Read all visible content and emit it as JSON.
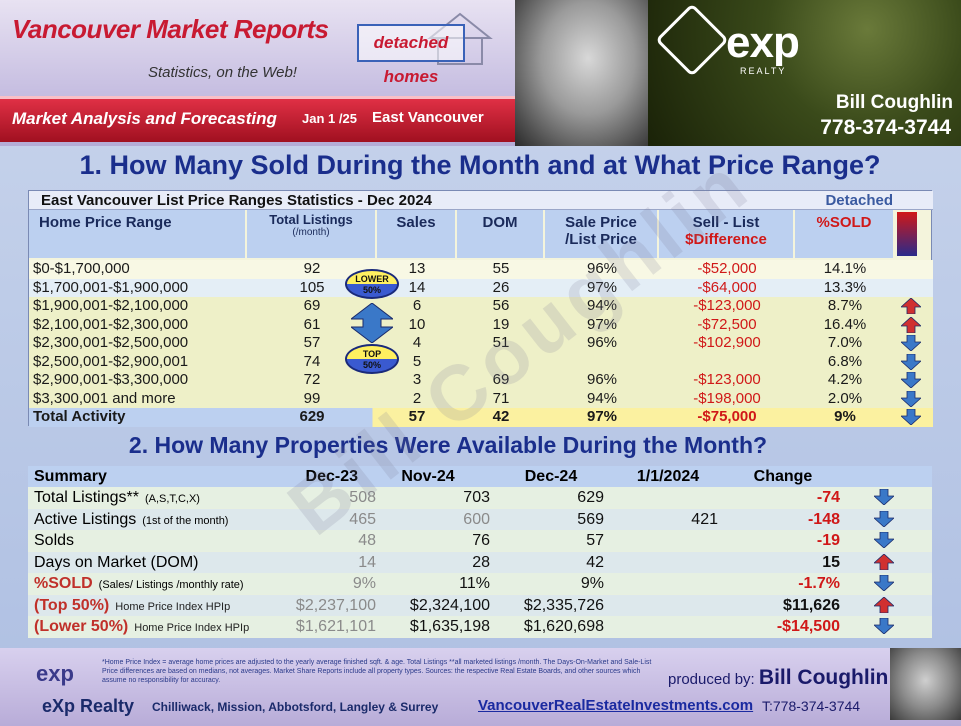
{
  "header": {
    "title": "Vancouver Market Reports",
    "subtitle": "Statistics, on the Web!",
    "badge": "detached homes",
    "bar_left": "Market Analysis and Forecasting",
    "bar_date": "Jan 1 /25",
    "bar_area": "East Vancouver",
    "logo_text": "exp",
    "logo_sub": "REALTY",
    "agent_name": "Bill Coughlin",
    "agent_phone": "778-374-3744"
  },
  "section1": {
    "heading": "1. How Many Sold During the Month and at What Price Range?",
    "table_title": "East Vancouver List Price Ranges Statistics - Dec 2024",
    "table_type": "Detached",
    "headers": {
      "range": "Home Price Range",
      "listings": "Total  Listings",
      "listings_sub": "(/month)",
      "sales": "Sales",
      "dom": "DOM",
      "sp_lp_1": "Sale Price",
      "sp_lp_2": "/List Price",
      "diff_1": "Sell - List",
      "diff_2": "$Difference",
      "sold": "%SOLD"
    },
    "lower_badge": [
      "LOWER",
      "50%"
    ],
    "top_badge": [
      "TOP",
      "50%"
    ],
    "rows": [
      {
        "range": "$0-$1,700,000",
        "listings": "92",
        "sales": "13",
        "dom": "55",
        "ratio": "96%",
        "diff": "-$52,000",
        "sold": "14.1%",
        "arrow": "none"
      },
      {
        "range": "$1,700,001-$1,900,000",
        "listings": "105",
        "sales": "14",
        "dom": "26",
        "ratio": "97%",
        "diff": "-$64,000",
        "sold": "13.3%",
        "arrow": "none"
      },
      {
        "range": "$1,900,001-$2,100,000",
        "listings": "69",
        "sales": "6",
        "dom": "56",
        "ratio": "94%",
        "diff": "-$123,000",
        "sold": "8.7%",
        "arrow": "up"
      },
      {
        "range": "$2,100,001-$2,300,000",
        "listings": "61",
        "sales": "10",
        "dom": "19",
        "ratio": "97%",
        "diff": "-$72,500",
        "sold": "16.4%",
        "arrow": "up"
      },
      {
        "range": "$2,300,001-$2,500,000",
        "listings": "57",
        "sales": "4",
        "dom": "51",
        "ratio": "96%",
        "diff": "-$102,900",
        "sold": "7.0%",
        "arrow": "down"
      },
      {
        "range": "$2,500,001-$2,900,001",
        "listings": "74",
        "sales": "5",
        "dom": "",
        "ratio": "",
        "diff": "",
        "sold": "6.8%",
        "arrow": "down"
      },
      {
        "range": "$2,900,001-$3,300,000",
        "listings": "72",
        "sales": "3",
        "dom": "69",
        "ratio": "96%",
        "diff": "-$123,000",
        "sold": "4.2%",
        "arrow": "down"
      },
      {
        "range": "$3,300,001 and more",
        "listings": "99",
        "sales": "2",
        "dom": "71",
        "ratio": "94%",
        "diff": "-$198,000",
        "sold": "2.0%",
        "arrow": "down"
      }
    ],
    "total": {
      "range": "Total Activity",
      "listings": "629",
      "sales": "57",
      "dom": "42",
      "ratio": "97%",
      "diff": "-$75,000",
      "sold": "9%",
      "arrow": "down"
    }
  },
  "section2": {
    "heading": "2. How Many Properties Were Available During the Month?",
    "headers": {
      "summary": "Summary",
      "c1": "Dec-23",
      "c2": "Nov-24",
      "c3": "Dec-24",
      "c4": "1/1/2024",
      "c5": "Change"
    },
    "rows": [
      {
        "label": "Total Listings**",
        "note": "(A,S,T,C,X)",
        "c1": "508",
        "c2": "703",
        "c3": "629",
        "c4": "",
        "change": "-74",
        "arrow": "down",
        "style": "plain"
      },
      {
        "label": "Active Listings",
        "note": "(1st of the month)",
        "c1": "465",
        "c2": "600",
        "c3": "569",
        "c4": "421",
        "change": "-148",
        "arrow": "down",
        "style": "plain"
      },
      {
        "label": "Solds",
        "note": "",
        "c1": "48",
        "c2": "76",
        "c3": "57",
        "c4": "",
        "change": "-19",
        "arrow": "down",
        "style": "plain"
      },
      {
        "label": "Days on Market (DOM)",
        "note": "",
        "c1": "14",
        "c2": "28",
        "c3": "42",
        "c4": "",
        "change": "15",
        "arrow": "up",
        "style": "plain"
      },
      {
        "label": "%SOLD",
        "note": "(Sales/ Listings /monthly rate)",
        "c1": "9%",
        "c2": "11%",
        "c3": "9%",
        "c4": "",
        "change": "-1.7%",
        "arrow": "down",
        "style": "red"
      },
      {
        "label": "(Top 50%)",
        "note": "Home Price Index HPIp",
        "c1": "$2,237,100",
        "c2": "$2,324,100",
        "c3": "$2,335,726",
        "c4": "",
        "change": "$11,626",
        "arrow": "up",
        "style": "red"
      },
      {
        "label": "(Lower 50%)",
        "note": "Home Price Index HPIp",
        "c1": "$1,621,101",
        "c2": "$1,635,198",
        "c3": "$1,620,698",
        "c4": "",
        "change": "-$14,500",
        "arrow": "down",
        "style": "red"
      }
    ]
  },
  "footer": {
    "logo": "exp",
    "note": "*Home Price Index = average home prices are adjusted to the yearly average finished sqft. & age.  Total Listings **all marketed listings /month.  The Days-On-Market and Sale-List Price differences are based on medians, not averages.  Market Share Reports include all property types.  Sources:  the respective Real Estate Boards, and other sources which assume no responsibility for accuracy.",
    "produced_by": "produced by:",
    "producer": "Bill Coughlin",
    "brand": "eXp  Realty",
    "cities": "Chilliwack, Mission, Abbotsford, Langley & Surrey",
    "url": "VancouverRealEstateInvestments.com",
    "tel": "T:778-374-3744"
  },
  "colors": {
    "accent": "#1a2e8c",
    "negative": "#d01818",
    "arrow_down": "#3a78c8",
    "arrow_up": "#d03030"
  }
}
